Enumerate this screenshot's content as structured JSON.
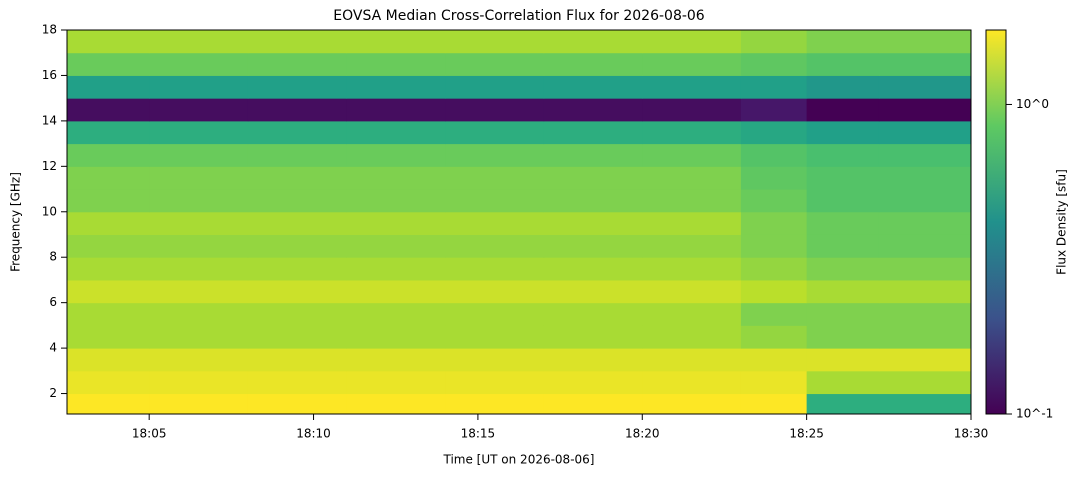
{
  "chart_data": {
    "type": "heatmap",
    "title": "EOVSA Median Cross-Correlation Flux for 2026-08-06",
    "x_label": "Time [UT on 2026-08-06]",
    "y_label": "Frequency [GHz]",
    "colorbar_label": "Flux Density [sfu]",
    "colormap": "viridis",
    "color_scale": "log",
    "xlim": [
      2.5,
      30
    ],
    "xticks": [
      {
        "value": 5,
        "label": "18:05"
      },
      {
        "value": 10,
        "label": "18:10"
      },
      {
        "value": 15,
        "label": "18:15"
      },
      {
        "value": 20,
        "label": "18:20"
      },
      {
        "value": 25,
        "label": "18:25"
      },
      {
        "value": 30,
        "label": "18:30"
      }
    ],
    "ylim": [
      1.1,
      18
    ],
    "yticks": [
      2,
      4,
      6,
      8,
      10,
      12,
      14,
      16,
      18
    ],
    "clim": [
      0.1,
      1.74
    ],
    "cticks": [
      {
        "value": 1,
        "label": "10^0"
      },
      {
        "value": 0.1,
        "label": "10^-1"
      }
    ],
    "x_edges": [
      2.5,
      5,
      8,
      11,
      14,
      17,
      20,
      23,
      25,
      27.2,
      30
    ],
    "y_edges": [
      1.1,
      2,
      3,
      4,
      5,
      6,
      7,
      8,
      9,
      10,
      11,
      12,
      13,
      14,
      15,
      16,
      17,
      18
    ],
    "z": [
      [
        1.8,
        1.8,
        1.8,
        1.8,
        1.8,
        1.8,
        1.8,
        1.8,
        0.6,
        0.6
      ],
      [
        1.6,
        1.6,
        1.6,
        1.6,
        1.6,
        1.6,
        1.6,
        1.6,
        1.2,
        1.2
      ],
      [
        1.5,
        1.5,
        1.5,
        1.5,
        1.5,
        1.5,
        1.5,
        1.5,
        1.5,
        1.5
      ],
      [
        1.2,
        1.2,
        1.2,
        1.2,
        1.2,
        1.2,
        1.2,
        1.1,
        1.0,
        1.0
      ],
      [
        1.2,
        1.2,
        1.2,
        1.2,
        1.2,
        1.2,
        1.2,
        1.0,
        1.0,
        1.0
      ],
      [
        1.4,
        1.4,
        1.4,
        1.4,
        1.4,
        1.4,
        1.4,
        1.3,
        1.2,
        1.2
      ],
      [
        1.2,
        1.2,
        1.2,
        1.2,
        1.2,
        1.2,
        1.2,
        1.1,
        1.0,
        1.0
      ],
      [
        1.1,
        1.1,
        1.1,
        1.1,
        1.1,
        1.1,
        1.1,
        1.0,
        0.9,
        0.9
      ],
      [
        1.2,
        1.2,
        1.2,
        1.2,
        1.2,
        1.2,
        1.2,
        1.0,
        0.9,
        0.9
      ],
      [
        1.0,
        1.0,
        1.0,
        1.0,
        1.0,
        1.0,
        1.0,
        0.9,
        0.8,
        0.8
      ],
      [
        1.0,
        1.0,
        1.0,
        1.0,
        1.0,
        1.0,
        1.0,
        0.85,
        0.8,
        0.8
      ],
      [
        0.9,
        0.9,
        0.9,
        0.9,
        0.9,
        0.9,
        0.9,
        0.8,
        0.75,
        0.75
      ],
      [
        0.6,
        0.6,
        0.6,
        0.6,
        0.6,
        0.6,
        0.6,
        0.55,
        0.5,
        0.5
      ],
      [
        0.11,
        0.11,
        0.11,
        0.11,
        0.11,
        0.11,
        0.11,
        0.12,
        0.1,
        0.1
      ],
      [
        0.5,
        0.5,
        0.5,
        0.5,
        0.5,
        0.5,
        0.5,
        0.5,
        0.45,
        0.45
      ],
      [
        0.9,
        0.9,
        0.9,
        0.9,
        0.9,
        0.9,
        0.9,
        0.85,
        0.8,
        0.8
      ],
      [
        1.2,
        1.2,
        1.2,
        1.2,
        1.2,
        1.2,
        1.2,
        1.1,
        1.0,
        1.0
      ]
    ]
  }
}
